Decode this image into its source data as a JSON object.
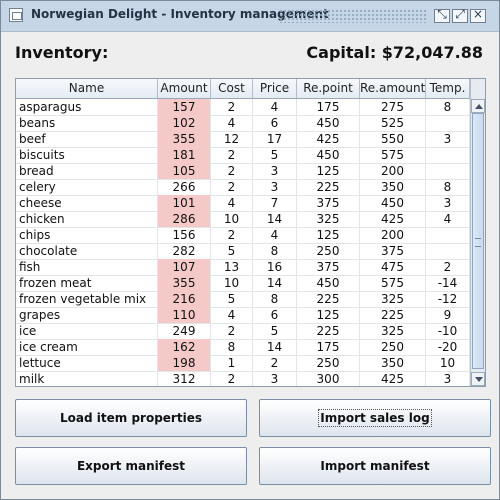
{
  "window": {
    "title": "Norwegian Delight - Inventory management",
    "controls": [
      "minimize",
      "maximize",
      "close"
    ]
  },
  "header": {
    "inventory_label": "Inventory:",
    "capital_label": "Capital: $72,047.88"
  },
  "table": {
    "columns": [
      "Name",
      "Amount",
      "Cost",
      "Price",
      "Re.point",
      "Re.amount",
      "Temp."
    ],
    "rows": [
      {
        "name": "asparagus",
        "amount": "157",
        "cost": "2",
        "price": "4",
        "repoint": "175",
        "reamount": "275",
        "temp": "8",
        "alert": true
      },
      {
        "name": "beans",
        "amount": "102",
        "cost": "4",
        "price": "6",
        "repoint": "450",
        "reamount": "525",
        "temp": "",
        "alert": true
      },
      {
        "name": "beef",
        "amount": "355",
        "cost": "12",
        "price": "17",
        "repoint": "425",
        "reamount": "550",
        "temp": "3",
        "alert": true
      },
      {
        "name": "biscuits",
        "amount": "181",
        "cost": "2",
        "price": "5",
        "repoint": "450",
        "reamount": "575",
        "temp": "",
        "alert": true
      },
      {
        "name": "bread",
        "amount": "105",
        "cost": "2",
        "price": "3",
        "repoint": "125",
        "reamount": "200",
        "temp": "",
        "alert": true
      },
      {
        "name": "celery",
        "amount": "266",
        "cost": "2",
        "price": "3",
        "repoint": "225",
        "reamount": "350",
        "temp": "8",
        "alert": false
      },
      {
        "name": "cheese",
        "amount": "101",
        "cost": "4",
        "price": "7",
        "repoint": "375",
        "reamount": "450",
        "temp": "3",
        "alert": true
      },
      {
        "name": "chicken",
        "amount": "286",
        "cost": "10",
        "price": "14",
        "repoint": "325",
        "reamount": "425",
        "temp": "4",
        "alert": true
      },
      {
        "name": "chips",
        "amount": "156",
        "cost": "2",
        "price": "4",
        "repoint": "125",
        "reamount": "200",
        "temp": "",
        "alert": false
      },
      {
        "name": "chocolate",
        "amount": "282",
        "cost": "5",
        "price": "8",
        "repoint": "250",
        "reamount": "375",
        "temp": "",
        "alert": false
      },
      {
        "name": "fish",
        "amount": "107",
        "cost": "13",
        "price": "16",
        "repoint": "375",
        "reamount": "475",
        "temp": "2",
        "alert": true
      },
      {
        "name": "frozen meat",
        "amount": "355",
        "cost": "10",
        "price": "14",
        "repoint": "450",
        "reamount": "575",
        "temp": "-14",
        "alert": true
      },
      {
        "name": "frozen vegetable mix",
        "amount": "216",
        "cost": "5",
        "price": "8",
        "repoint": "225",
        "reamount": "325",
        "temp": "-12",
        "alert": true
      },
      {
        "name": "grapes",
        "amount": "110",
        "cost": "4",
        "price": "6",
        "repoint": "125",
        "reamount": "225",
        "temp": "9",
        "alert": true
      },
      {
        "name": "ice",
        "amount": "249",
        "cost": "2",
        "price": "5",
        "repoint": "225",
        "reamount": "325",
        "temp": "-10",
        "alert": false
      },
      {
        "name": "ice cream",
        "amount": "162",
        "cost": "8",
        "price": "14",
        "repoint": "175",
        "reamount": "250",
        "temp": "-20",
        "alert": true
      },
      {
        "name": "lettuce",
        "amount": "198",
        "cost": "1",
        "price": "2",
        "repoint": "250",
        "reamount": "350",
        "temp": "10",
        "alert": true
      },
      {
        "name": "milk",
        "amount": "312",
        "cost": "2",
        "price": "3",
        "repoint": "300",
        "reamount": "425",
        "temp": "3",
        "alert": false
      }
    ]
  },
  "buttons": {
    "load_item_properties": "Load item properties",
    "import_sales_log": "Import sales log",
    "export_manifest": "Export manifest",
    "import_manifest": "Import manifest"
  },
  "colors": {
    "alert_cell": "#F6C9C9",
    "titlebar": "#C7D6E7"
  },
  "icons": {
    "app": "app-window-icon",
    "minimize": "minimize-icon",
    "maximize": "maximize-icon",
    "close": "close-icon"
  }
}
